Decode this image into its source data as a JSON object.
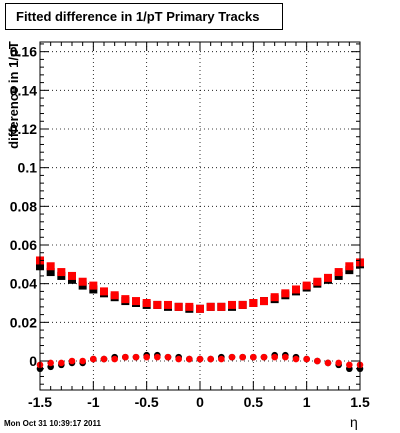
{
  "chart_data": {
    "type": "scatter",
    "title": "Fitted difference in 1/pT  Primary Tracks",
    "xlabel": "η",
    "ylabel": "difference in 1/pT",
    "xlim": [
      -1.5,
      1.5
    ],
    "ylim": [
      -0.015,
      0.165
    ],
    "x_ticks": [
      "-1.5",
      "-1",
      "-0.5",
      "0",
      "0.5",
      "1",
      "1.5"
    ],
    "y_ticks": [
      "0",
      "0.02",
      "0.04",
      "0.06",
      "0.08",
      "0.1",
      "0.12",
      "0.14",
      "0.16"
    ],
    "grid": true,
    "series": [
      {
        "color": "#000000",
        "marker": "square",
        "x": [
          -1.5,
          -1.4,
          -1.3,
          -1.2,
          -1.1,
          -1.0,
          -0.9,
          -0.8,
          -0.7,
          -0.6,
          -0.5,
          -0.4,
          -0.3,
          -0.2,
          -0.1,
          0.0,
          0.1,
          0.2,
          0.3,
          0.4,
          0.5,
          0.6,
          0.7,
          0.8,
          0.9,
          1.0,
          1.1,
          1.2,
          1.3,
          1.4,
          1.5
        ],
        "y": [
          0.049,
          0.046,
          0.044,
          0.042,
          0.039,
          0.037,
          0.035,
          0.033,
          0.031,
          0.03,
          0.029,
          0.029,
          0.028,
          0.028,
          0.027,
          0.027,
          0.028,
          0.028,
          0.028,
          0.029,
          0.03,
          0.031,
          0.032,
          0.034,
          0.036,
          0.038,
          0.04,
          0.042,
          0.044,
          0.047,
          0.05
        ]
      },
      {
        "color": "#ff0000",
        "marker": "square",
        "x": [
          -1.5,
          -1.4,
          -1.3,
          -1.2,
          -1.1,
          -1.0,
          -0.9,
          -0.8,
          -0.7,
          -0.6,
          -0.5,
          -0.4,
          -0.3,
          -0.2,
          -0.1,
          0.0,
          0.1,
          0.2,
          0.3,
          0.4,
          0.5,
          0.6,
          0.7,
          0.8,
          0.9,
          1.0,
          1.1,
          1.2,
          1.3,
          1.4,
          1.5
        ],
        "y": [
          0.052,
          0.049,
          0.046,
          0.044,
          0.041,
          0.039,
          0.036,
          0.034,
          0.032,
          0.031,
          0.03,
          0.029,
          0.029,
          0.028,
          0.028,
          0.027,
          0.028,
          0.028,
          0.029,
          0.029,
          0.03,
          0.031,
          0.033,
          0.035,
          0.037,
          0.039,
          0.041,
          0.043,
          0.046,
          0.049,
          0.051
        ]
      },
      {
        "color": "#000000",
        "marker": "circle",
        "x": [
          -1.5,
          -1.4,
          -1.3,
          -1.2,
          -1.1,
          -1.0,
          -0.9,
          -0.8,
          -0.7,
          -0.6,
          -0.5,
          -0.4,
          -0.3,
          -0.2,
          -0.1,
          0.0,
          0.1,
          0.2,
          0.3,
          0.4,
          0.5,
          0.6,
          0.7,
          0.8,
          0.9,
          1.0,
          1.1,
          1.2,
          1.3,
          1.4,
          1.5
        ],
        "y": [
          -0.004,
          -0.003,
          -0.002,
          -0.001,
          -0.001,
          0.001,
          0.001,
          0.002,
          0.002,
          0.002,
          0.003,
          0.003,
          0.002,
          0.002,
          0.001,
          0.001,
          0.001,
          0.002,
          0.002,
          0.002,
          0.002,
          0.002,
          0.003,
          0.003,
          0.002,
          0.001,
          0.0,
          -0.001,
          -0.002,
          -0.004,
          -0.004
        ]
      },
      {
        "color": "#ff0000",
        "marker": "circle",
        "x": [
          -1.5,
          -1.4,
          -1.3,
          -1.2,
          -1.1,
          -1.0,
          -0.9,
          -0.8,
          -0.7,
          -0.6,
          -0.5,
          -0.4,
          -0.3,
          -0.2,
          -0.1,
          0.0,
          0.1,
          0.2,
          0.3,
          0.4,
          0.5,
          0.6,
          0.7,
          0.8,
          0.9,
          1.0,
          1.1,
          1.2,
          1.3,
          1.4,
          1.5
        ],
        "y": [
          -0.002,
          -0.001,
          -0.001,
          0.0,
          0.0,
          0.001,
          0.001,
          0.001,
          0.002,
          0.002,
          0.002,
          0.002,
          0.002,
          0.001,
          0.001,
          0.001,
          0.001,
          0.001,
          0.002,
          0.002,
          0.002,
          0.002,
          0.002,
          0.002,
          0.001,
          0.001,
          0.0,
          -0.001,
          -0.001,
          -0.002,
          -0.002
        ]
      }
    ]
  },
  "footer_timestamp": "Mon Oct 31 10:39:17 2011"
}
